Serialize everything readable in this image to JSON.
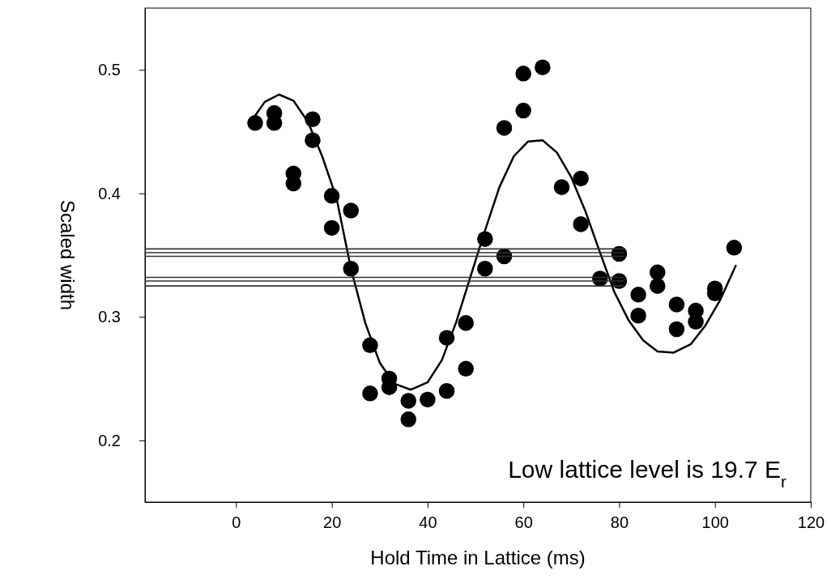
{
  "chart_data": {
    "type": "scatter",
    "xlabel": "Hold Time in Lattice (ms)",
    "ylabel": "Scaled width",
    "xlim": [
      -19,
      120
    ],
    "xticks": [
      0,
      20,
      40,
      60,
      80,
      100,
      120
    ],
    "ylim": [
      0.15,
      0.55
    ],
    "yticks": [
      0.2,
      0.3,
      0.4,
      0.5
    ],
    "grid": false,
    "legend": false,
    "marker": "circle",
    "annotations": [
      "Low lattice level is 19.7 E$_{r}$"
    ],
    "series": [
      {
        "type": "scatter",
        "color": "#000000",
        "x": [
          4,
          8,
          8,
          16,
          16,
          12,
          12,
          20,
          24,
          20,
          24,
          28,
          28,
          32,
          32,
          36,
          36,
          40,
          44,
          44,
          48,
          48,
          52,
          52,
          56,
          56,
          60,
          60,
          64,
          68,
          72,
          72,
          80,
          76,
          80,
          84,
          84,
          88,
          88,
          92,
          92,
          96,
          96,
          100,
          100,
          104
        ],
        "values": [
          0.457,
          0.465,
          0.457,
          0.46,
          0.443,
          0.416,
          0.408,
          0.398,
          0.386,
          0.372,
          0.339,
          0.277,
          0.238,
          0.25,
          0.243,
          0.232,
          0.217,
          0.233,
          0.283,
          0.24,
          0.295,
          0.258,
          0.363,
          0.339,
          0.349,
          0.453,
          0.467,
          0.497,
          0.502,
          0.405,
          0.412,
          0.375,
          0.351,
          0.331,
          0.329,
          0.318,
          0.301,
          0.336,
          0.325,
          0.31,
          0.29,
          0.305,
          0.296,
          0.323,
          0.319,
          0.356
        ]
      },
      {
        "type": "line",
        "color": "#000000",
        "marker": "none",
        "line_style": "solid",
        "x": [
          4,
          6,
          9,
          12,
          15,
          18,
          21,
          24,
          27,
          30,
          33,
          36.5,
          40,
          43,
          46,
          49,
          52,
          55,
          58,
          61,
          64,
          67,
          70,
          73,
          76,
          79,
          82,
          85,
          88,
          91.4,
          95,
          98,
          101,
          104.4
        ],
        "values": [
          0.463,
          0.474,
          0.48,
          0.475,
          0.458,
          0.43,
          0.396,
          0.339,
          0.295,
          0.263,
          0.246,
          0.241,
          0.247,
          0.265,
          0.296,
          0.333,
          0.37,
          0.405,
          0.43,
          0.442,
          0.443,
          0.433,
          0.413,
          0.385,
          0.352,
          0.32,
          0.297,
          0.281,
          0.272,
          0.271,
          0.278,
          0.293,
          0.313,
          0.342
        ]
      },
      {
        "type": "line",
        "color": "#333333",
        "marker": "none",
        "line_style": "solid",
        "x": [
          -19,
          81
        ],
        "values": [
          0.355,
          0.355
        ]
      },
      {
        "type": "line",
        "color": "#333333",
        "marker": "none",
        "line_style": "solid",
        "x": [
          -19,
          81
        ],
        "values": [
          0.352,
          0.352
        ]
      },
      {
        "type": "line",
        "color": "#333333",
        "marker": "none",
        "line_style": "solid",
        "x": [
          -19,
          81
        ],
        "values": [
          0.349,
          0.349
        ]
      },
      {
        "type": "line",
        "color": "#333333",
        "marker": "none",
        "line_style": "solid",
        "x": [
          -19,
          81
        ],
        "values": [
          0.332,
          0.332
        ]
      },
      {
        "type": "line",
        "color": "#333333",
        "marker": "none",
        "line_style": "solid",
        "x": [
          -19,
          81
        ],
        "values": [
          0.329,
          0.329
        ]
      },
      {
        "type": "line",
        "color": "#333333",
        "marker": "none",
        "line_style": "solid",
        "x": [
          -19,
          81
        ],
        "values": [
          0.325,
          0.325
        ]
      }
    ]
  }
}
